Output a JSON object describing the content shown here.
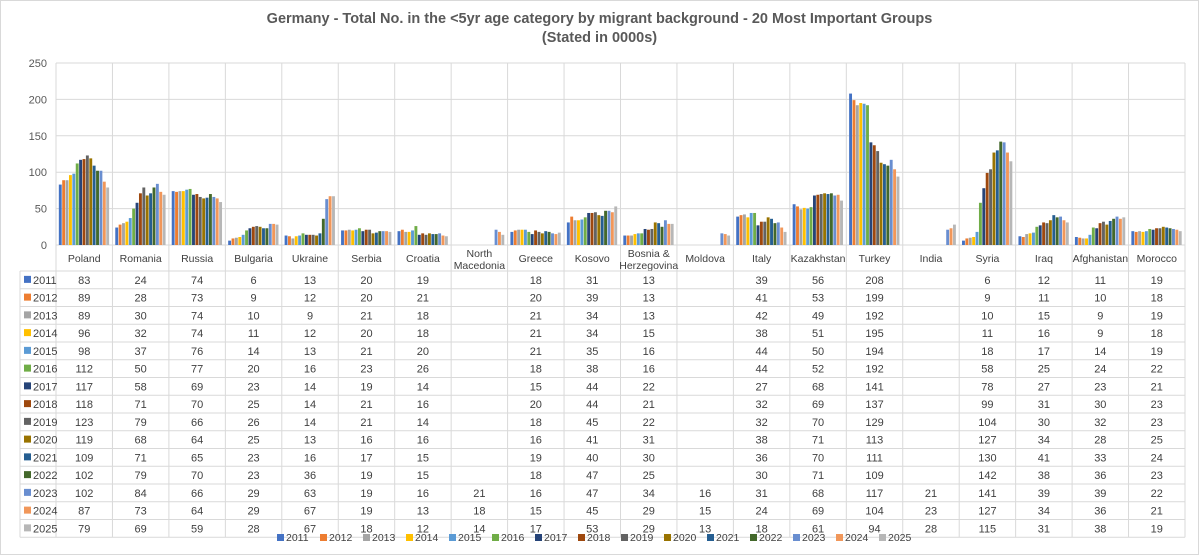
{
  "chart_data": {
    "type": "bar",
    "title": "Germany - Total No. in the <5yr age category by migrant background - 20 Most Important Groups",
    "subtitle": "(Stated in 0000s)",
    "xlabel": "",
    "ylabel": "",
    "ylim": [
      0,
      250
    ],
    "yticks": [
      0,
      50,
      100,
      150,
      200,
      250
    ],
    "grid": true,
    "legend_position": "bottom",
    "categories": [
      "Poland",
      "Romania",
      "Russia",
      "Bulgaria",
      "Ukraine",
      "Serbia",
      "Croatia",
      "North Macedonia",
      "Greece",
      "Kosovo",
      "Bosnia & Herzegovina",
      "Moldova",
      "Italy",
      "Kazakhstan",
      "Turkey",
      "India",
      "Syria",
      "Iraq",
      "Afghanistan",
      "Morocco"
    ],
    "category_label_lines": [
      [
        "Poland"
      ],
      [
        "Romania"
      ],
      [
        "Russia"
      ],
      [
        "Bulgaria"
      ],
      [
        "Ukraine"
      ],
      [
        "Serbia"
      ],
      [
        "Croatia"
      ],
      [
        "North",
        "Macedonia"
      ],
      [
        "Greece"
      ],
      [
        "Kosovo"
      ],
      [
        "Bosnia &",
        "Herzegovina"
      ],
      [
        "Moldova"
      ],
      [
        "Italy"
      ],
      [
        "Kazakhstan"
      ],
      [
        "Turkey"
      ],
      [
        "India"
      ],
      [
        "Syria"
      ],
      [
        "Iraq"
      ],
      [
        "Afghanistan"
      ],
      [
        "Morocco"
      ]
    ],
    "series": [
      {
        "name": "2011",
        "color": "#4472C4",
        "values": [
          83,
          24,
          74,
          6,
          13,
          20,
          19,
          null,
          18,
          31,
          13,
          null,
          39,
          56,
          208,
          null,
          6,
          12,
          11,
          19
        ]
      },
      {
        "name": "2012",
        "color": "#ED7D31",
        "values": [
          89,
          28,
          73,
          9,
          12,
          20,
          21,
          null,
          20,
          39,
          13,
          null,
          41,
          53,
          199,
          null,
          9,
          11,
          10,
          18
        ]
      },
      {
        "name": "2013",
        "color": "#A5A5A5",
        "values": [
          89,
          30,
          74,
          10,
          9,
          21,
          18,
          null,
          21,
          34,
          13,
          null,
          42,
          49,
          192,
          null,
          10,
          15,
          9,
          19
        ]
      },
      {
        "name": "2014",
        "color": "#FFC000",
        "values": [
          96,
          32,
          74,
          11,
          12,
          20,
          18,
          null,
          21,
          34,
          15,
          null,
          38,
          51,
          195,
          null,
          11,
          16,
          9,
          18
        ]
      },
      {
        "name": "2015",
        "color": "#5B9BD5",
        "values": [
          98,
          37,
          76,
          14,
          13,
          21,
          20,
          null,
          21,
          35,
          16,
          null,
          44,
          50,
          194,
          null,
          18,
          17,
          14,
          19
        ]
      },
      {
        "name": "2016",
        "color": "#70AD47",
        "values": [
          112,
          50,
          77,
          20,
          16,
          23,
          26,
          null,
          18,
          38,
          16,
          null,
          44,
          52,
          192,
          null,
          58,
          25,
          24,
          22
        ]
      },
      {
        "name": "2017",
        "color": "#264478",
        "values": [
          117,
          58,
          69,
          23,
          14,
          19,
          14,
          null,
          15,
          44,
          22,
          null,
          27,
          68,
          141,
          null,
          78,
          27,
          23,
          21
        ]
      },
      {
        "name": "2018",
        "color": "#9E480E",
        "values": [
          118,
          71,
          70,
          25,
          14,
          21,
          16,
          null,
          20,
          44,
          21,
          null,
          32,
          69,
          137,
          null,
          99,
          31,
          30,
          23
        ]
      },
      {
        "name": "2019",
        "color": "#636363",
        "values": [
          123,
          79,
          66,
          26,
          14,
          21,
          14,
          null,
          18,
          45,
          22,
          null,
          32,
          70,
          129,
          null,
          104,
          30,
          32,
          23
        ]
      },
      {
        "name": "2020",
        "color": "#997300",
        "values": [
          119,
          68,
          64,
          25,
          13,
          16,
          16,
          null,
          16,
          41,
          31,
          null,
          38,
          71,
          113,
          null,
          127,
          34,
          28,
          25
        ]
      },
      {
        "name": "2021",
        "color": "#255E91",
        "values": [
          109,
          71,
          65,
          23,
          16,
          17,
          15,
          null,
          19,
          40,
          30,
          null,
          36,
          70,
          111,
          null,
          130,
          41,
          33,
          24
        ]
      },
      {
        "name": "2022",
        "color": "#43682B",
        "values": [
          102,
          79,
          70,
          23,
          36,
          19,
          15,
          null,
          18,
          47,
          25,
          null,
          30,
          71,
          109,
          null,
          142,
          38,
          36,
          23
        ]
      },
      {
        "name": "2023",
        "color": "#698ED0",
        "values": [
          102,
          84,
          66,
          29,
          63,
          19,
          16,
          21,
          16,
          47,
          34,
          16,
          31,
          68,
          117,
          21,
          141,
          39,
          39,
          22
        ]
      },
      {
        "name": "2024",
        "color": "#F1975A",
        "values": [
          87,
          73,
          64,
          29,
          67,
          19,
          13,
          18,
          15,
          45,
          29,
          15,
          24,
          69,
          104,
          23,
          127,
          34,
          36,
          21
        ]
      },
      {
        "name": "2025",
        "color": "#B7B7B7",
        "values": [
          79,
          69,
          59,
          28,
          67,
          18,
          12,
          14,
          17,
          53,
          29,
          13,
          18,
          61,
          94,
          28,
          115,
          31,
          38,
          19
        ]
      }
    ]
  }
}
